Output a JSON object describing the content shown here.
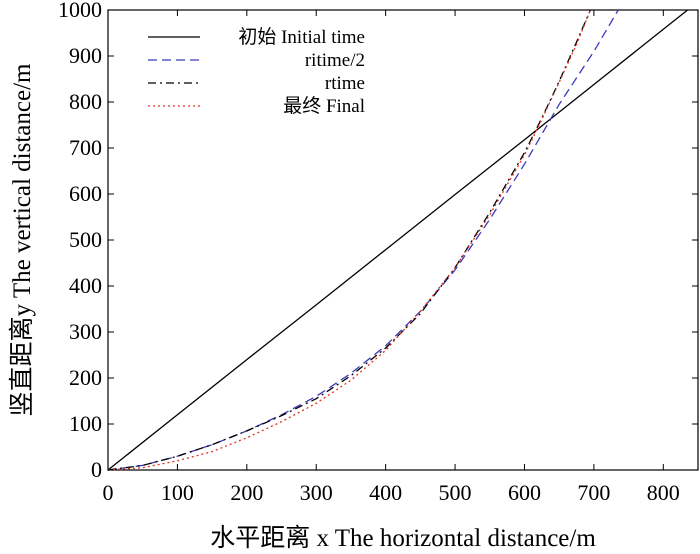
{
  "chart_data": {
    "type": "line",
    "xlabel": "水平距离 x The horizontal distance/m",
    "ylabel": "竖直距离y The vertical distance/m",
    "xlim": [
      0,
      850
    ],
    "ylim": [
      0,
      1000
    ],
    "xticks": [
      0,
      100,
      200,
      300,
      400,
      500,
      600,
      700,
      800
    ],
    "yticks": [
      0,
      100,
      200,
      300,
      400,
      500,
      600,
      700,
      800,
      900,
      1000
    ],
    "legend_position": "top-left",
    "grid": false,
    "series": [
      {
        "name": "初始 Initial time",
        "color": "#000000",
        "style": "solid",
        "x": [
          0,
          100,
          200,
          300,
          400,
          500,
          600,
          700,
          800,
          835
        ],
        "y": [
          0,
          120,
          240,
          359,
          479,
          599,
          718,
          838,
          958,
          1000
        ]
      },
      {
        "name": "ritime/2",
        "color": "#3a3ab8",
        "style": "dashed",
        "x": [
          0,
          50,
          100,
          150,
          200,
          250,
          300,
          350,
          400,
          450,
          500,
          550,
          600,
          650,
          700,
          735
        ],
        "y": [
          0,
          10,
          30,
          55,
          85,
          120,
          160,
          210,
          270,
          345,
          435,
          545,
          665,
          795,
          910,
          1000
        ]
      },
      {
        "name": "rtime",
        "color": "#000000",
        "style": "dashdot",
        "x": [
          0,
          50,
          100,
          150,
          200,
          250,
          300,
          350,
          400,
          450,
          500,
          550,
          600,
          625,
          650,
          675,
          695
        ],
        "y": [
          0,
          10,
          30,
          55,
          85,
          118,
          155,
          205,
          265,
          340,
          440,
          560,
          690,
          765,
          845,
          930,
          1000
        ]
      },
      {
        "name": "最终 Final",
        "color": "#e03020",
        "style": "dotted",
        "x": [
          0,
          50,
          100,
          150,
          200,
          250,
          300,
          350,
          400,
          450,
          500,
          550,
          600,
          625,
          650,
          675,
          695
        ],
        "y": [
          0,
          5,
          20,
          40,
          70,
          105,
          145,
          195,
          260,
          345,
          440,
          555,
          685,
          762,
          843,
          925,
          1000
        ]
      }
    ]
  }
}
